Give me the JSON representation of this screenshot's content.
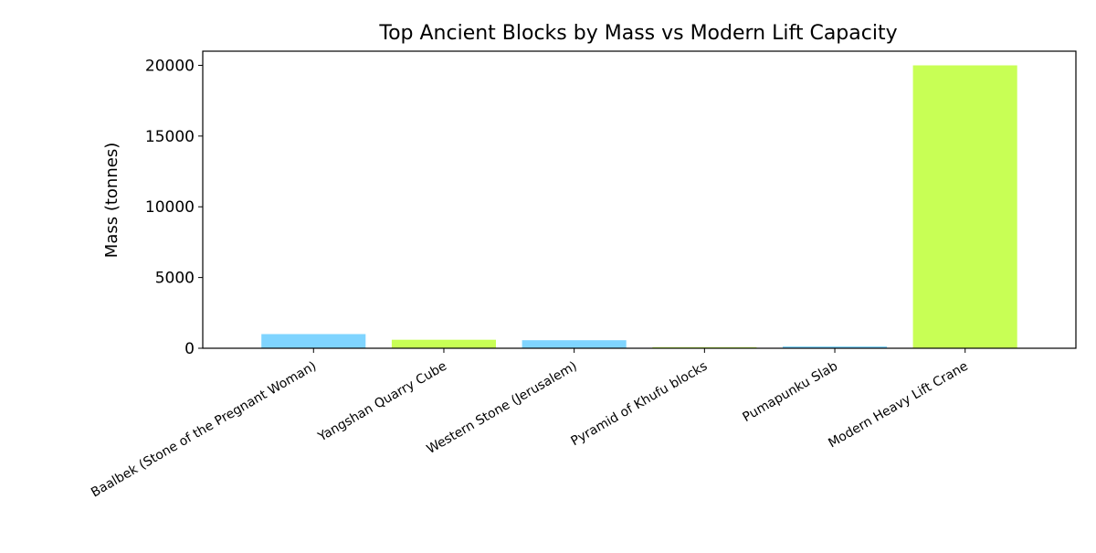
{
  "chart_data": {
    "type": "bar",
    "title": "Top Ancient Blocks by Mass vs Modern Lift Capacity",
    "xlabel": "",
    "ylabel": "Mass (tonnes)",
    "ylim": [
      0,
      21000
    ],
    "yticks": [
      "0",
      "5000",
      "10000",
      "15000",
      "20000"
    ],
    "grid": false,
    "legend": "none",
    "categories": [
      "Baalbek (Stone of the Pregnant Woman)",
      "Yangshan Quarry Cube",
      "Western Stone (Jerusalem)",
      "Pyramid of Khufu blocks",
      "Pumapunku Slab",
      "Modern Heavy Lift Crane"
    ],
    "values": [
      1000,
      600,
      570,
      80,
      130,
      20000
    ],
    "colors": [
      "#7fd4ff",
      "#c8ff55",
      "#7fd4ff",
      "#c8ff55",
      "#7fd4ff",
      "#c8ff55"
    ]
  }
}
